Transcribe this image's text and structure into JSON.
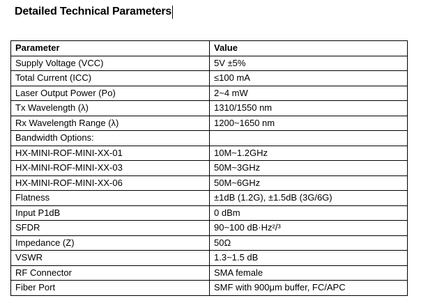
{
  "document": {
    "heading": "Detailed Technical Parameters"
  },
  "table": {
    "headers": [
      "Parameter",
      "Value"
    ],
    "rows": [
      [
        "Supply Voltage (VCC)",
        "5V ±5%"
      ],
      [
        "Total Current (ICC)",
        "≤100 mA"
      ],
      [
        "Laser Output Power (Po)",
        "2~4 mW"
      ],
      [
        "Tx Wavelength (λ)",
        "1310/1550 nm"
      ],
      [
        "Rx Wavelength Range (λ)",
        "1200~1650 nm"
      ],
      [
        "Bandwidth Options:",
        ""
      ],
      [
        "HX-MINI-ROF-MINI-XX-01",
        "10M~1.2GHz"
      ],
      [
        "HX-MINI-ROF-MINI-XX-03",
        "50M~3GHz"
      ],
      [
        "HX-MINI-ROF-MINI-XX-06",
        "50M~6GHz"
      ],
      [
        "Flatness",
        "±1dB (1.2G), ±1.5dB (3G/6G)"
      ],
      [
        "Input P1dB",
        "0 dBm"
      ],
      [
        "SFDR",
        "90~100 dB·Hz²/³"
      ],
      [
        "Impedance (Z)",
        "50Ω"
      ],
      [
        "VSWR",
        "1.3~1.5 dB"
      ],
      [
        "RF Connector",
        "SMA female"
      ],
      [
        "Fiber Port",
        "SMF with 900μm buffer, FC/APC"
      ]
    ]
  }
}
